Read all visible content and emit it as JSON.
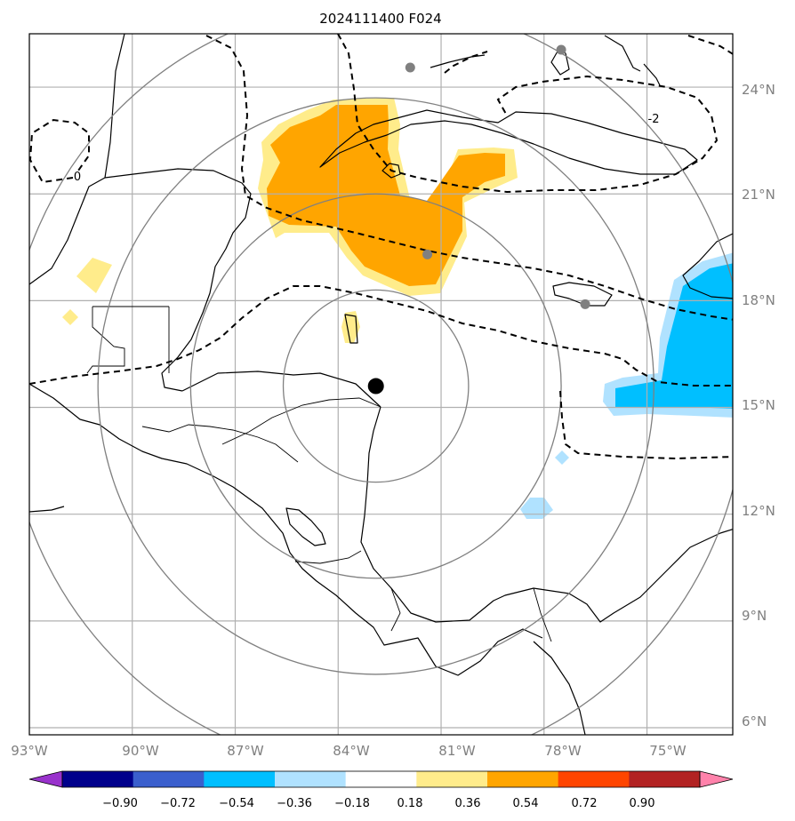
{
  "title": "2024111400 F024",
  "map": {
    "lon_range": [
      -93,
      -72.5
    ],
    "lat_range": [
      5.8,
      25.5
    ],
    "grid_lon": [
      -93,
      -90,
      -87,
      -84,
      -81,
      -78,
      -75
    ],
    "grid_lat": [
      6,
      9,
      12,
      15,
      18,
      21,
      24
    ],
    "lon_labels": [
      "93°W",
      "90°W",
      "87°W",
      "84°W",
      "81°W",
      "78°W",
      "75°W"
    ],
    "lat_labels": [
      "6°N",
      "9°N",
      "12°N",
      "15°N",
      "18°N",
      "21°N",
      "24°N"
    ],
    "center": {
      "lon": -82.9,
      "lat": 15.6
    },
    "range_rings_deg": [
      2.7,
      5.4,
      8.1,
      10.8
    ],
    "gridline_color": "#b0b0b0",
    "ring_color": "#808080",
    "contour_labels": [
      "0",
      "-2"
    ],
    "stations": [
      {
        "lon": -81.9,
        "lat": 24.55
      },
      {
        "lon": -77.5,
        "lat": 25.05
      },
      {
        "lon": -81.4,
        "lat": 19.3
      },
      {
        "lon": -76.8,
        "lat": 17.9
      }
    ]
  },
  "colorbar": {
    "labels": [
      "−0.90",
      "−0.72",
      "−0.54",
      "−0.36",
      "−0.18",
      "0.18",
      "0.36",
      "0.54",
      "0.72",
      "0.90"
    ],
    "colors": [
      "#9932cc",
      "#00008b",
      "#3a5fcd",
      "#00bfff",
      "#b0e2ff",
      "#ffffff",
      "#ffec8b",
      "#ffa500",
      "#ff4500",
      "#b22222",
      "#ff82ab"
    ]
  }
}
